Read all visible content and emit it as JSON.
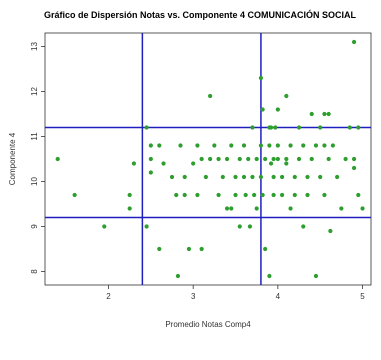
{
  "chart_data": {
    "type": "scatter",
    "title": "Gráfico de Dispersión Notas vs. Componente 4  COMUNICACIÓN SOCIAL",
    "xlabel": "Promedio Notas Comp4",
    "ylabel": "Componente 4",
    "xlim": [
      1.25,
      5.1
    ],
    "ylim": [
      7.7,
      13.3
    ],
    "x_ticks": [
      "2",
      "3",
      "4",
      "5"
    ],
    "y_ticks": [
      "8",
      "9",
      "10",
      "11",
      "12",
      "13"
    ],
    "grid": false,
    "reference_lines": {
      "vertical": [
        2.4,
        3.8
      ],
      "horizontal": [
        9.2,
        11.2
      ],
      "color": "#1f1fbf"
    },
    "point_color": "#2e9e2e",
    "points": [
      [
        1.4,
        10.5
      ],
      [
        1.6,
        9.7
      ],
      [
        1.95,
        9.0
      ],
      [
        2.25,
        9.7
      ],
      [
        2.25,
        9.4
      ],
      [
        2.3,
        10.4
      ],
      [
        2.45,
        11.2
      ],
      [
        2.45,
        9.0
      ],
      [
        2.5,
        10.8
      ],
      [
        2.5,
        10.5
      ],
      [
        2.5,
        10.2
      ],
      [
        2.6,
        8.5
      ],
      [
        2.6,
        10.8
      ],
      [
        2.65,
        10.4
      ],
      [
        2.75,
        10.1
      ],
      [
        2.8,
        9.7
      ],
      [
        2.82,
        7.9
      ],
      [
        2.85,
        10.8
      ],
      [
        2.9,
        9.7
      ],
      [
        2.9,
        10.1
      ],
      [
        2.95,
        8.5
      ],
      [
        3.0,
        10.4
      ],
      [
        3.05,
        9.7
      ],
      [
        3.05,
        10.8
      ],
      [
        3.1,
        8.5
      ],
      [
        3.1,
        10.5
      ],
      [
        3.15,
        10.1
      ],
      [
        3.2,
        10.5
      ],
      [
        3.2,
        11.9
      ],
      [
        3.25,
        10.8
      ],
      [
        3.3,
        10.5
      ],
      [
        3.3,
        9.7
      ],
      [
        3.35,
        10.1
      ],
      [
        3.4,
        10.5
      ],
      [
        3.4,
        9.4
      ],
      [
        3.45,
        10.8
      ],
      [
        3.5,
        10.1
      ],
      [
        3.5,
        9.7
      ],
      [
        3.55,
        10.5
      ],
      [
        3.55,
        9.0
      ],
      [
        3.6,
        10.8
      ],
      [
        3.6,
        10.1
      ],
      [
        3.62,
        9.7
      ],
      [
        3.65,
        10.5
      ],
      [
        3.67,
        9.0
      ],
      [
        3.7,
        11.2
      ],
      [
        3.7,
        10.1
      ],
      [
        3.72,
        9.7
      ],
      [
        3.75,
        10.5
      ],
      [
        3.75,
        9.4
      ],
      [
        3.8,
        12.3
      ],
      [
        3.8,
        10.8
      ],
      [
        3.8,
        10.1
      ],
      [
        3.82,
        9.7
      ],
      [
        3.82,
        11.6
      ],
      [
        3.85,
        8.5
      ],
      [
        3.85,
        10.5
      ],
      [
        3.9,
        7.9
      ],
      [
        3.9,
        11.2
      ],
      [
        3.9,
        10.8
      ],
      [
        3.92,
        10.4
      ],
      [
        3.95,
        10.1
      ],
      [
        3.95,
        9.7
      ],
      [
        4.0,
        11.6
      ],
      [
        4.0,
        10.5
      ],
      [
        4.0,
        10.8
      ],
      [
        4.05,
        10.1
      ],
      [
        4.05,
        9.7
      ],
      [
        4.1,
        11.9
      ],
      [
        4.1,
        10.5
      ],
      [
        4.15,
        9.4
      ],
      [
        4.15,
        10.8
      ],
      [
        4.2,
        10.1
      ],
      [
        4.2,
        9.7
      ],
      [
        4.25,
        10.5
      ],
      [
        4.25,
        11.2
      ],
      [
        4.3,
        10.8
      ],
      [
        4.3,
        9.0
      ],
      [
        4.35,
        10.1
      ],
      [
        4.35,
        9.7
      ],
      [
        4.4,
        11.5
      ],
      [
        4.4,
        10.5
      ],
      [
        4.45,
        7.9
      ],
      [
        4.45,
        10.8
      ],
      [
        4.5,
        11.2
      ],
      [
        4.5,
        10.1
      ],
      [
        4.55,
        11.5
      ],
      [
        4.55,
        9.7
      ],
      [
        4.6,
        11.5
      ],
      [
        4.6,
        10.5
      ],
      [
        4.62,
        8.9
      ],
      [
        4.65,
        10.8
      ],
      [
        4.7,
        10.1
      ],
      [
        4.75,
        9.4
      ],
      [
        4.8,
        10.5
      ],
      [
        4.85,
        11.2
      ],
      [
        4.9,
        13.1
      ],
      [
        4.9,
        10.5
      ],
      [
        4.9,
        10.3
      ],
      [
        4.95,
        11.2
      ],
      [
        4.95,
        9.7
      ],
      [
        5.0,
        9.4
      ],
      [
        3.92,
        11.2
      ],
      [
        3.97,
        11.2
      ],
      [
        3.45,
        9.4
      ],
      [
        3.95,
        10.5
      ],
      [
        4.1,
        10.4
      ],
      [
        4.55,
        10.8
      ]
    ]
  }
}
